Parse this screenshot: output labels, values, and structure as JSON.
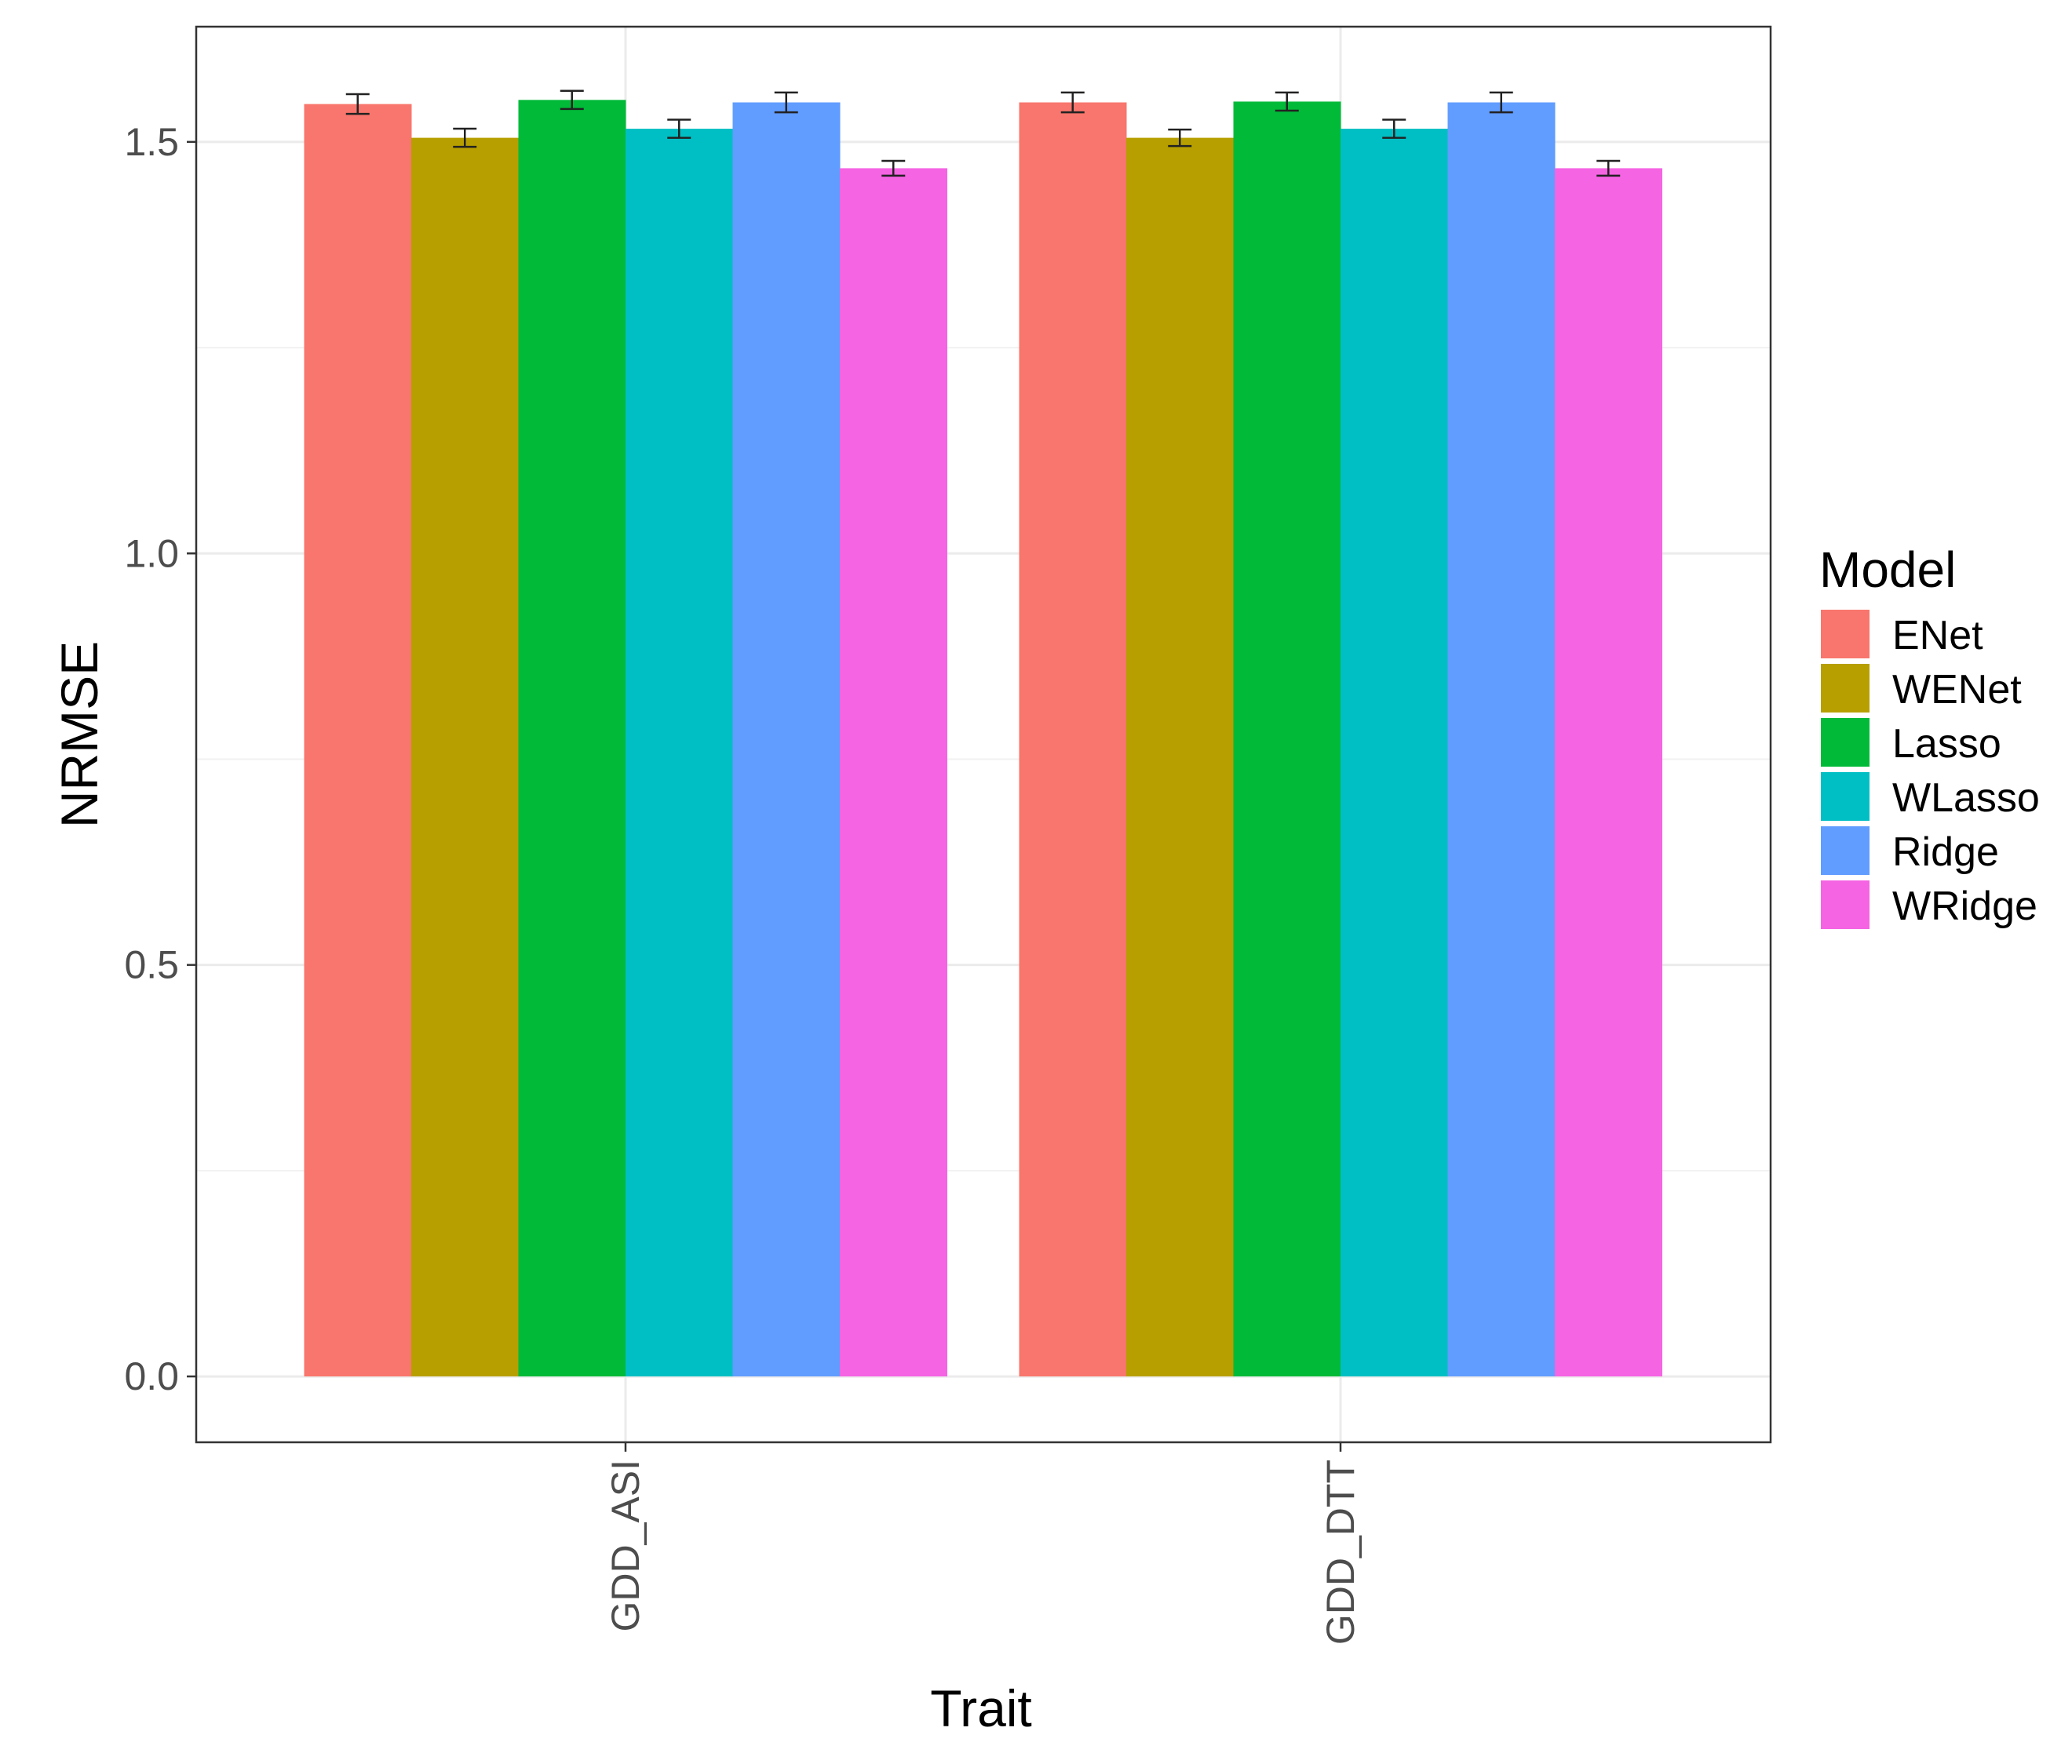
{
  "chart_data": {
    "type": "bar",
    "xlabel": "Trait",
    "ylabel": "NRMSE",
    "categories": [
      "GDD_ASI",
      "GDD_DTT"
    ],
    "ylim": [
      -0.08,
      1.64
    ],
    "yticks": [
      0.0,
      0.5,
      1.0,
      1.5
    ],
    "ytick_labels": [
      "0.0",
      "0.5",
      "1.0",
      "1.5"
    ],
    "grid": true,
    "legend": {
      "title": "Model",
      "position": "right"
    },
    "series": [
      {
        "name": "ENet",
        "color": "#F8766D",
        "values": [
          1.546,
          1.548
        ],
        "errors": [
          0.012,
          0.012
        ]
      },
      {
        "name": "WENet",
        "color": "#B79F00",
        "values": [
          1.505,
          1.505
        ],
        "errors": [
          0.011,
          0.01
        ]
      },
      {
        "name": "Lasso",
        "color": "#00BA38",
        "values": [
          1.551,
          1.549
        ],
        "errors": [
          0.011,
          0.011
        ]
      },
      {
        "name": "WLasso",
        "color": "#00BFC4",
        "values": [
          1.516,
          1.516
        ],
        "errors": [
          0.011,
          0.011
        ]
      },
      {
        "name": "Ridge",
        "color": "#619CFF",
        "values": [
          1.548,
          1.548
        ],
        "errors": [
          0.012,
          0.012
        ]
      },
      {
        "name": "WRidge",
        "color": "#F564E3",
        "values": [
          1.468,
          1.468
        ],
        "errors": [
          0.009,
          0.009
        ]
      }
    ]
  }
}
